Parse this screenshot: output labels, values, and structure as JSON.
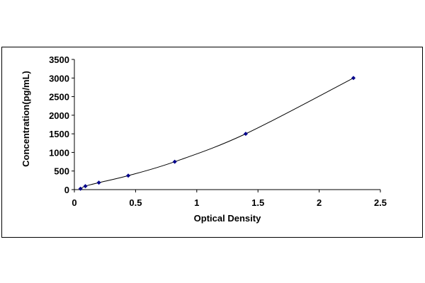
{
  "chart_data": {
    "type": "scatter",
    "title": "",
    "xlabel": "Optical Density",
    "ylabel": "Concentration(pg/mL)",
    "xlim": [
      0,
      2.5
    ],
    "ylim": [
      0,
      3500
    ],
    "x_ticks": [
      "0",
      "0.5",
      "1",
      "1.5",
      "2",
      "2.5"
    ],
    "y_ticks": [
      "0",
      "500",
      "1000",
      "1500",
      "2000",
      "2500",
      "3000",
      "3500"
    ],
    "grid": false,
    "legend": "none",
    "marker_color": "#00008B",
    "line_color": "#000000",
    "series": [
      {
        "x": [
          0.05,
          0.09,
          0.2,
          0.44,
          0.82,
          1.4,
          2.28
        ],
        "y": [
          23.44,
          93.75,
          187.5,
          375,
          750,
          1500,
          3000
        ],
        "trendline": "smooth"
      }
    ]
  }
}
